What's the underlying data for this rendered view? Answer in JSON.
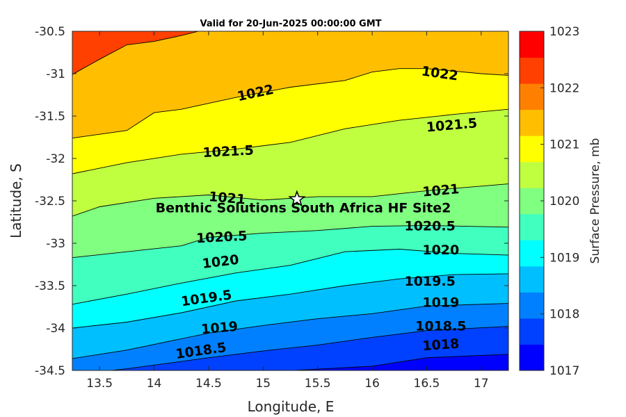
{
  "chart_data": {
    "type": "contour",
    "title": "Valid for 20-Jun-2025 00:00:00 GMT",
    "xlabel": "Longitude, E",
    "ylabel": "Latitude, S",
    "xlim": [
      13.25,
      17.25
    ],
    "ylim": [
      -34.5,
      -30.5
    ],
    "x_ticks": [
      "13.5",
      "14",
      "14.5",
      "15",
      "15.5",
      "16",
      "16.5",
      "17"
    ],
    "y_ticks": [
      "-30.5",
      "-31",
      "-31.5",
      "-32",
      "-32.5",
      "-33",
      "-33.5",
      "-34",
      "-34.5"
    ],
    "colorbar": {
      "label": "Surface Pressure, mb",
      "range": [
        1017,
        1023
      ],
      "ticks": [
        "1017",
        "1018",
        "1019",
        "1020",
        "1021",
        "1022",
        "1023"
      ]
    },
    "levels": [
      {
        "value": 1017.25,
        "color": "#0000ff"
      },
      {
        "value": 1017.5,
        "color": "#0040ff"
      },
      {
        "value": 1017.75,
        "color": "#0080ff"
      },
      {
        "value": 1018.25,
        "color": "#00bfff"
      },
      {
        "value": 1018.75,
        "color": "#00ffff"
      },
      {
        "value": 1019.25,
        "color": "#40ffbf"
      },
      {
        "value": 1019.75,
        "color": "#80ff80"
      },
      {
        "value": 1020.25,
        "color": "#bfff40"
      },
      {
        "value": 1020.75,
        "color": "#ffff00"
      },
      {
        "value": 1021.25,
        "color": "#ffbf00"
      },
      {
        "value": 1021.75,
        "color": "#ff8000"
      },
      {
        "value": 1022.25,
        "color": "#ff4000"
      },
      {
        "value": 1022.75,
        "color": "#ff0000"
      }
    ],
    "contour_lines": [
      {
        "label": "1018",
        "points": [
          [
            13.25,
            -34.68
          ],
          [
            14.0,
            -34.6
          ],
          [
            15.0,
            -34.52
          ],
          [
            16.0,
            -34.45
          ],
          [
            16.5,
            -34.35
          ],
          [
            17.25,
            -34.31
          ]
        ]
      },
      {
        "label": "1018.5",
        "points": [
          [
            13.25,
            -34.55
          ],
          [
            13.75,
            -34.48
          ],
          [
            14.5,
            -34.35
          ],
          [
            15.0,
            -34.27
          ],
          [
            15.5,
            -34.2
          ],
          [
            16.0,
            -34.11
          ],
          [
            16.5,
            -34.03
          ],
          [
            17.25,
            -33.98
          ]
        ]
      },
      {
        "label": "1019",
        "points": [
          [
            13.25,
            -34.36
          ],
          [
            13.75,
            -34.26
          ],
          [
            14.5,
            -34.06
          ],
          [
            15.0,
            -33.97
          ],
          [
            15.5,
            -33.89
          ],
          [
            16.0,
            -33.83
          ],
          [
            16.5,
            -33.74
          ],
          [
            17.25,
            -33.71
          ]
        ]
      },
      {
        "label": "1019.5",
        "points": [
          [
            13.25,
            -34.0
          ],
          [
            13.75,
            -33.93
          ],
          [
            14.25,
            -33.82
          ],
          [
            14.75,
            -33.68
          ],
          [
            15.25,
            -33.6
          ],
          [
            15.75,
            -33.5
          ],
          [
            16.25,
            -33.42
          ],
          [
            16.75,
            -33.37
          ],
          [
            17.25,
            -33.36
          ]
        ]
      },
      {
        "label": "1020",
        "points": [
          [
            13.25,
            -33.72
          ],
          [
            13.75,
            -33.6
          ],
          [
            14.25,
            -33.47
          ],
          [
            14.75,
            -33.35
          ],
          [
            15.25,
            -33.26
          ],
          [
            15.75,
            -33.1
          ],
          [
            16.25,
            -33.07
          ],
          [
            16.75,
            -33.12
          ],
          [
            17.25,
            -33.14
          ]
        ]
      },
      {
        "label": "1020.5",
        "points": [
          [
            13.25,
            -33.17
          ],
          [
            13.75,
            -33.1
          ],
          [
            14.25,
            -33.03
          ],
          [
            14.5,
            -32.93
          ],
          [
            15.0,
            -32.88
          ],
          [
            15.5,
            -32.85
          ],
          [
            16.0,
            -32.8
          ],
          [
            16.5,
            -32.79
          ],
          [
            17.25,
            -32.81
          ]
        ]
      },
      {
        "label": "1021",
        "points": [
          [
            13.25,
            -32.68
          ],
          [
            13.5,
            -32.57
          ],
          [
            14.0,
            -32.47
          ],
          [
            14.5,
            -32.43
          ],
          [
            15.0,
            -32.49
          ],
          [
            15.5,
            -32.45
          ],
          [
            16.0,
            -32.45
          ],
          [
            16.5,
            -32.38
          ],
          [
            17.25,
            -32.3
          ]
        ]
      },
      {
        "label": "1021.5",
        "points": [
          [
            13.25,
            -32.18
          ],
          [
            13.75,
            -32.05
          ],
          [
            14.25,
            -31.95
          ],
          [
            14.75,
            -31.89
          ],
          [
            15.25,
            -31.81
          ],
          [
            15.75,
            -31.65
          ],
          [
            16.25,
            -31.55
          ],
          [
            16.75,
            -31.48
          ],
          [
            17.25,
            -31.42
          ]
        ]
      },
      {
        "label": "1022",
        "points": [
          [
            13.25,
            -31.76
          ],
          [
            13.75,
            -31.67
          ],
          [
            14.0,
            -31.46
          ],
          [
            14.25,
            -31.42
          ],
          [
            14.75,
            -31.28
          ],
          [
            15.25,
            -31.16
          ],
          [
            15.75,
            -31.08
          ],
          [
            16.0,
            -30.98
          ],
          [
            16.25,
            -30.94
          ],
          [
            16.5,
            -30.94
          ],
          [
            17.0,
            -31.0
          ],
          [
            17.25,
            -31.02
          ]
        ]
      },
      {
        "label": "",
        "points": [
          [
            13.25,
            -31.01
          ],
          [
            13.5,
            -30.83
          ],
          [
            13.75,
            -30.66
          ],
          [
            14.0,
            -30.62
          ],
          [
            14.25,
            -30.55
          ],
          [
            14.5,
            -30.47
          ]
        ]
      }
    ],
    "contour_labels": [
      {
        "text": "1022",
        "x": 14.93,
        "y": -31.23,
        "angle": -12
      },
      {
        "text": "1022",
        "x": 16.62,
        "y": -31.0,
        "angle": 8
      },
      {
        "text": "1021.5",
        "x": 14.68,
        "y": -31.92,
        "angle": -3
      },
      {
        "text": "1021.5",
        "x": 16.73,
        "y": -31.61,
        "angle": -5
      },
      {
        "text": "1021",
        "x": 14.67,
        "y": -32.47,
        "angle": 5
      },
      {
        "text": "1021",
        "x": 16.63,
        "y": -32.38,
        "angle": -5
      },
      {
        "text": "1020.5",
        "x": 14.62,
        "y": -32.93,
        "angle": -3
      },
      {
        "text": "1020.5",
        "x": 16.53,
        "y": -32.8,
        "angle": 0
      },
      {
        "text": "1020",
        "x": 14.61,
        "y": -33.22,
        "angle": -7
      },
      {
        "text": "1020",
        "x": 16.63,
        "y": -33.08,
        "angle": 0
      },
      {
        "text": "1019.5",
        "x": 14.48,
        "y": -33.65,
        "angle": -8
      },
      {
        "text": "1019.5",
        "x": 16.53,
        "y": -33.45,
        "angle": 0
      },
      {
        "text": "1019",
        "x": 14.6,
        "y": -34.0,
        "angle": -5
      },
      {
        "text": "1019",
        "x": 16.63,
        "y": -33.7,
        "angle": 0
      },
      {
        "text": "1018.5",
        "x": 14.43,
        "y": -34.27,
        "angle": -8
      },
      {
        "text": "1018.5",
        "x": 16.63,
        "y": -33.98,
        "angle": 0
      },
      {
        "text": "1018",
        "x": 16.63,
        "y": -34.2,
        "angle": -4
      }
    ],
    "markers": [
      {
        "name": "Benthic Solutions South Africa HF Site2",
        "x": 15.31,
        "y": -32.48,
        "symbol": "star"
      }
    ]
  }
}
